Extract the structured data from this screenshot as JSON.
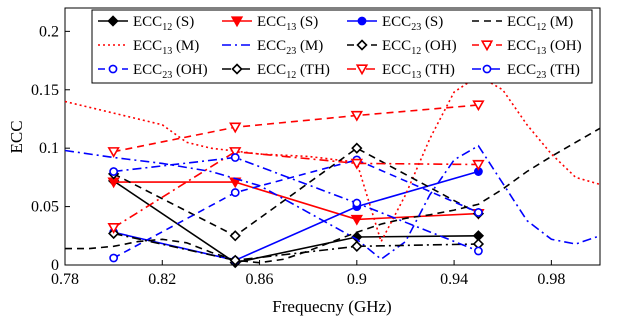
{
  "chart_data": {
    "type": "line",
    "xlabel": "Frequecny (GHz)",
    "ylabel": "ECC",
    "xlim": [
      0.78,
      1.0
    ],
    "ylim": [
      0,
      0.22
    ],
    "xticks": [
      "0.78",
      "0.82",
      "0.86",
      "0.9",
      "0.94",
      "0.98"
    ],
    "xtick_values": [
      0.78,
      0.82,
      0.86,
      0.9,
      0.94,
      0.98
    ],
    "yticks": [
      "0",
      "0.05",
      "0.1",
      "0.15",
      "0.2"
    ],
    "ytick_values": [
      0,
      0.05,
      0.1,
      0.15,
      0.2
    ],
    "grid": false,
    "legend_placement": "top, inside axes, 4 columns",
    "series": [
      {
        "name": "ECC12 (S)",
        "base": "ECC",
        "sub": "12",
        "tag": "(S)",
        "color": "#000000",
        "dash": "solid",
        "marker": "diamond",
        "filled": true,
        "x": [
          0.8,
          0.85,
          0.9,
          0.95
        ],
        "y": [
          0.072,
          0.002,
          0.024,
          0.025
        ]
      },
      {
        "name": "ECC13 (S)",
        "base": "ECC",
        "sub": "13",
        "tag": "(S)",
        "color": "#ff0000",
        "dash": "solid",
        "marker": "triangle-down",
        "filled": true,
        "x": [
          0.8,
          0.85,
          0.9,
          0.95
        ],
        "y": [
          0.071,
          0.071,
          0.039,
          0.044
        ]
      },
      {
        "name": "ECC23 (S)",
        "base": "ECC",
        "sub": "23",
        "tag": "(S)",
        "color": "#0000ff",
        "dash": "solid",
        "marker": "circle",
        "filled": true,
        "x": [
          0.8,
          0.85,
          0.9,
          0.95
        ],
        "y": [
          0.028,
          0.004,
          0.05,
          0.08
        ]
      },
      {
        "name": "ECC12 (M)",
        "base": "ECC",
        "sub": "12",
        "tag": "(M)",
        "color": "#000000",
        "dash": "dashed",
        "marker": "none",
        "x": [
          0.78,
          0.79,
          0.8,
          0.81,
          0.82,
          0.83,
          0.84,
          0.85,
          0.86,
          0.87,
          0.88,
          0.89,
          0.9,
          0.91,
          0.92,
          0.93,
          0.94,
          0.95,
          0.96,
          0.97,
          0.98,
          0.99,
          1.0
        ],
        "y": [
          0.014,
          0.014,
          0.016,
          0.02,
          0.022,
          0.019,
          0.011,
          0.004,
          0.002,
          0.005,
          0.012,
          0.02,
          0.028,
          0.035,
          0.04,
          0.043,
          0.047,
          0.052,
          0.065,
          0.08,
          0.093,
          0.105,
          0.117
        ]
      },
      {
        "name": "ECC13 (M)",
        "base": "ECC",
        "sub": "13",
        "tag": "(M)",
        "color": "#ff0000",
        "dash": "dotted",
        "marker": "none",
        "x": [
          0.78,
          0.8,
          0.82,
          0.83,
          0.84,
          0.86,
          0.88,
          0.9,
          0.91,
          0.92,
          0.93,
          0.94,
          0.95,
          0.96,
          0.97,
          0.98,
          0.99,
          1.0
        ],
        "y": [
          0.14,
          0.13,
          0.12,
          0.105,
          0.1,
          0.095,
          0.093,
          0.088,
          0.02,
          0.06,
          0.108,
          0.148,
          0.162,
          0.15,
          0.12,
          0.095,
          0.075,
          0.069
        ]
      },
      {
        "name": "ECC23 (M)",
        "base": "ECC",
        "sub": "23",
        "tag": "(M)",
        "color": "#0000ff",
        "dash": "dashdot",
        "marker": "none",
        "x": [
          0.78,
          0.8,
          0.82,
          0.84,
          0.86,
          0.88,
          0.9,
          0.91,
          0.92,
          0.93,
          0.94,
          0.95,
          0.96,
          0.97,
          0.98,
          0.99,
          1.0
        ],
        "y": [
          0.098,
          0.092,
          0.087,
          0.08,
          0.068,
          0.045,
          0.022,
          0.005,
          0.02,
          0.06,
          0.09,
          0.102,
          0.07,
          0.038,
          0.022,
          0.018,
          0.025
        ]
      },
      {
        "name": "ECC12 (OH)",
        "base": "ECC",
        "sub": "12",
        "tag": "(OH)",
        "color": "#000000",
        "dash": "dashed",
        "marker": "diamond",
        "filled": false,
        "x": [
          0.8,
          0.85,
          0.9,
          0.95
        ],
        "y": [
          0.078,
          0.025,
          0.1,
          0.044
        ]
      },
      {
        "name": "ECC13 (OH)",
        "base": "ECC",
        "sub": "13",
        "tag": "(OH)",
        "color": "#ff0000",
        "dash": "dashed",
        "marker": "triangle-down",
        "filled": false,
        "x": [
          0.8,
          0.85,
          0.9,
          0.95
        ],
        "y": [
          0.097,
          0.118,
          0.128,
          0.137
        ]
      },
      {
        "name": "ECC23 (OH)",
        "base": "ECC",
        "sub": "23",
        "tag": "(OH)",
        "color": "#0000ff",
        "dash": "dashed",
        "marker": "circle",
        "filled": false,
        "x": [
          0.8,
          0.85,
          0.9,
          0.95
        ],
        "y": [
          0.006,
          0.062,
          0.09,
          0.045
        ]
      },
      {
        "name": "ECC12 (TH)",
        "base": "ECC",
        "sub": "12",
        "tag": "(TH)",
        "color": "#000000",
        "dash": "dashdot",
        "marker": "diamond",
        "filled": false,
        "x": [
          0.8,
          0.85,
          0.9,
          0.95
        ],
        "y": [
          0.027,
          0.004,
          0.016,
          0.018
        ]
      },
      {
        "name": "ECC13 (TH)",
        "base": "ECC",
        "sub": "13",
        "tag": "(TH)",
        "color": "#ff0000",
        "dash": "dashdot",
        "marker": "triangle-down",
        "filled": false,
        "x": [
          0.8,
          0.85,
          0.9,
          0.95
        ],
        "y": [
          0.032,
          0.097,
          0.087,
          0.086
        ]
      },
      {
        "name": "ECC23 (TH)",
        "base": "ECC",
        "sub": "23",
        "tag": "(TH)",
        "color": "#0000ff",
        "dash": "dashdot",
        "marker": "circle",
        "filled": false,
        "x": [
          0.8,
          0.85,
          0.9,
          0.95
        ],
        "y": [
          0.08,
          0.092,
          0.053,
          0.012
        ]
      }
    ]
  }
}
